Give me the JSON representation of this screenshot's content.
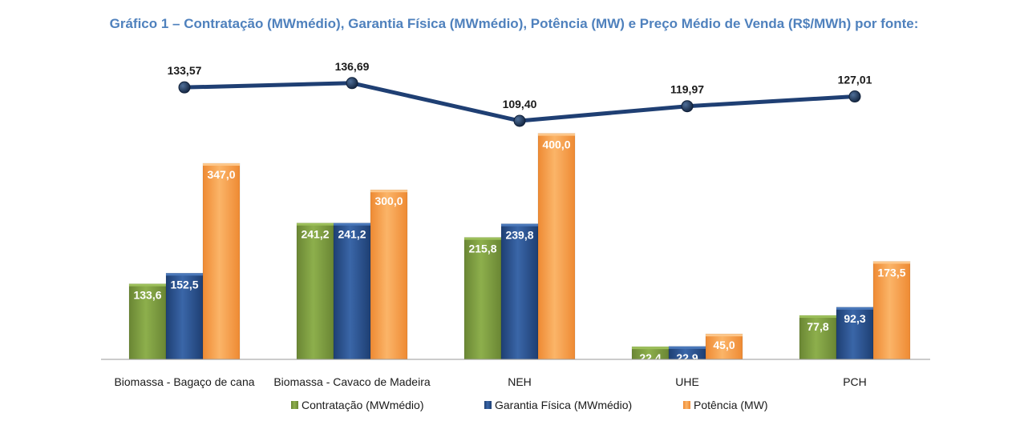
{
  "title": "Gráfico 1 – Contratação (MWmédio), Garantia Física (MWmédio), Potência (MW) e Preço Médio de Venda (R$/MWh) por fonte:",
  "chart_data": {
    "type": "bar",
    "categories": [
      "Biomassa - Bagaço de cana",
      "Biomassa - Cavaco de Madeira",
      "NEH",
      "UHE",
      "PCH"
    ],
    "series": [
      {
        "name": "Contratação (MWmédio)",
        "color": "#77933C",
        "values": [
          133.6,
          241.2,
          215.8,
          22.4,
          77.8
        ],
        "labels": [
          "133,6",
          "241,2",
          "215,8",
          "22,4",
          "77,8"
        ]
      },
      {
        "name": "Garantia Física (MWmédio)",
        "color": "#254A84",
        "values": [
          152.5,
          241.2,
          239.8,
          22.9,
          92.3
        ],
        "labels": [
          "152,5",
          "241,2",
          "239,8",
          "22,9",
          "92,3"
        ]
      },
      {
        "name": "Potência (MW)",
        "color": "#F79646",
        "values": [
          347.0,
          300.0,
          400.0,
          45.0,
          173.5
        ],
        "labels": [
          "347,0",
          "300,0",
          "400,0",
          "45,0",
          "173,5"
        ]
      }
    ],
    "line_series": {
      "type": "line",
      "color": "#1F3F73",
      "values": [
        133.57,
        136.69,
        109.4,
        119.97,
        127.01
      ],
      "labels": [
        "133,57",
        "136,69",
        "109,40",
        "119,97",
        "127,01"
      ]
    },
    "legend_position": "bottom",
    "grid": false
  }
}
